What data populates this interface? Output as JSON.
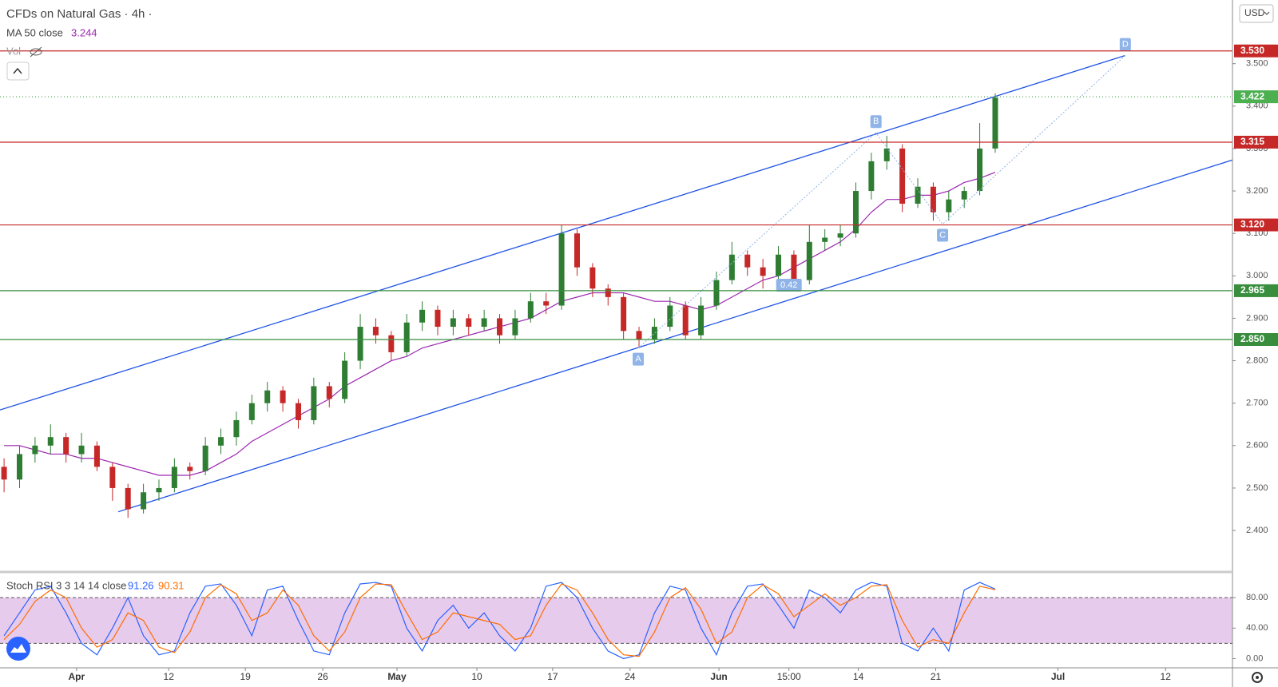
{
  "header": {
    "vol_label": "Vol",
    "currency": "USD"
  },
  "chart_data": [
    {
      "type": "candlestick",
      "title": "CFDs on Natural Gas · 4h ·",
      "colors": {
        "up": "#2e7d32",
        "down": "#c62828"
      },
      "open": [
        2.55,
        2.52,
        2.58,
        2.6,
        2.62,
        2.58,
        2.6,
        2.55,
        2.5,
        2.45,
        2.49,
        2.5,
        2.55,
        2.54,
        2.6,
        2.62,
        2.66,
        2.7,
        2.73,
        2.7,
        2.66,
        2.74,
        2.71,
        2.8,
        2.88,
        2.86,
        2.82,
        2.89,
        2.92,
        2.88,
        2.9,
        2.88,
        2.9,
        2.86,
        2.9,
        2.94,
        2.93,
        3.1,
        3.02,
        2.97,
        2.95,
        2.87,
        2.85,
        2.88,
        2.93,
        2.86,
        2.93,
        2.99,
        3.05,
        3.02,
        3.0,
        3.05,
        2.99,
        3.08,
        3.09,
        3.1,
        3.2,
        3.27,
        3.3,
        3.17,
        3.21,
        3.15,
        3.18,
        3.2,
        3.3
      ],
      "high": [
        2.57,
        2.6,
        2.62,
        2.65,
        2.63,
        2.63,
        2.61,
        2.56,
        2.51,
        2.51,
        2.52,
        2.57,
        2.56,
        2.62,
        2.64,
        2.68,
        2.72,
        2.75,
        2.74,
        2.71,
        2.76,
        2.75,
        2.82,
        2.91,
        2.9,
        2.87,
        2.91,
        2.94,
        2.93,
        2.92,
        2.91,
        2.92,
        2.91,
        2.92,
        2.96,
        2.96,
        3.12,
        3.11,
        3.03,
        2.98,
        2.96,
        2.88,
        2.9,
        2.95,
        2.94,
        2.95,
        3.01,
        3.08,
        3.06,
        3.04,
        3.07,
        3.06,
        3.12,
        3.11,
        3.12,
        3.22,
        3.29,
        3.33,
        3.31,
        3.23,
        3.22,
        3.2,
        3.21,
        3.36,
        3.43
      ],
      "low": [
        2.49,
        2.5,
        2.56,
        2.58,
        2.56,
        2.56,
        2.54,
        2.47,
        2.43,
        2.44,
        2.47,
        2.49,
        2.52,
        2.53,
        2.58,
        2.6,
        2.65,
        2.68,
        2.68,
        2.64,
        2.65,
        2.69,
        2.7,
        2.78,
        2.84,
        2.8,
        2.81,
        2.87,
        2.86,
        2.86,
        2.86,
        2.87,
        2.84,
        2.85,
        2.89,
        2.91,
        2.92,
        3.0,
        2.95,
        2.93,
        2.85,
        2.83,
        2.84,
        2.87,
        2.85,
        2.85,
        2.92,
        2.98,
        3.0,
        2.97,
        2.99,
        2.97,
        2.98,
        3.06,
        3.07,
        3.09,
        3.18,
        3.25,
        3.15,
        3.16,
        3.13,
        3.13,
        3.16,
        3.19,
        3.29
      ],
      "close": [
        2.52,
        2.58,
        2.6,
        2.62,
        2.58,
        2.6,
        2.55,
        2.5,
        2.45,
        2.49,
        2.5,
        2.55,
        2.54,
        2.6,
        2.62,
        2.66,
        2.7,
        2.73,
        2.7,
        2.66,
        2.74,
        2.71,
        2.8,
        2.88,
        2.86,
        2.82,
        2.89,
        2.92,
        2.88,
        2.9,
        2.88,
        2.9,
        2.86,
        2.9,
        2.94,
        2.93,
        3.1,
        3.02,
        2.97,
        2.95,
        2.87,
        2.85,
        2.88,
        2.93,
        2.86,
        2.93,
        2.99,
        3.05,
        3.02,
        3.0,
        3.05,
        2.99,
        3.08,
        3.09,
        3.1,
        3.2,
        3.27,
        3.3,
        3.17,
        3.21,
        3.15,
        3.18,
        3.2,
        3.3,
        3.42
      ],
      "ma": {
        "name": "MA 50 close",
        "color": "#9c27b0",
        "values": [
          2.6,
          2.6,
          2.59,
          2.58,
          2.58,
          2.57,
          2.57,
          2.56,
          2.55,
          2.54,
          2.53,
          2.53,
          2.53,
          2.54,
          2.56,
          2.58,
          2.61,
          2.63,
          2.65,
          2.67,
          2.69,
          2.71,
          2.74,
          2.76,
          2.78,
          2.8,
          2.81,
          2.83,
          2.84,
          2.85,
          2.86,
          2.87,
          2.88,
          2.89,
          2.9,
          2.92,
          2.94,
          2.95,
          2.96,
          2.96,
          2.96,
          2.95,
          2.94,
          2.94,
          2.93,
          2.92,
          2.93,
          2.95,
          2.97,
          2.99,
          3.0,
          3.02,
          3.04,
          3.06,
          3.08,
          3.11,
          3.15,
          3.18,
          3.18,
          3.19,
          3.19,
          3.2,
          3.22,
          3.23,
          3.244
        ]
      },
      "xlim": [
        -0.263,
        79.32
      ],
      "ylim": [
        2.306,
        3.65
      ],
      "yticks": [
        {
          "value": 2.4,
          "label": "2.400"
        },
        {
          "value": 2.5,
          "label": "2.500"
        },
        {
          "value": 2.6,
          "label": "2.600"
        },
        {
          "value": 2.7,
          "label": "2.700"
        },
        {
          "value": 2.8,
          "label": "2.800"
        },
        {
          "value": 2.9,
          "label": "2.900"
        },
        {
          "value": 3.0,
          "label": "3.000"
        },
        {
          "value": 3.1,
          "label": "3.100"
        },
        {
          "value": 3.2,
          "label": "3.200"
        },
        {
          "value": 3.3,
          "label": "3.300"
        },
        {
          "value": 3.4,
          "label": "3.400"
        },
        {
          "value": 3.5,
          "label": "3.500"
        }
      ],
      "levels": [
        {
          "value": 3.53,
          "label": "3.530",
          "color": "#c62828"
        },
        {
          "value": 3.422,
          "label": "3.422",
          "color": "#4caf50",
          "style": "dotted"
        },
        {
          "value": 3.315,
          "label": "3.315",
          "color": "#c62828"
        },
        {
          "value": 3.12,
          "label": "3.120",
          "color": "#c62828"
        },
        {
          "value": 2.965,
          "label": "2.965",
          "color": "#388e3c"
        },
        {
          "value": 2.85,
          "label": "2.850",
          "color": "#388e3c"
        }
      ],
      "channel": {
        "color": "#1e53e5",
        "lines": [
          {
            "x": [
              -0.26,
              72.37
            ],
            "y": [
              2.684,
              3.519
            ]
          },
          {
            "x": [
              7.37,
              79.32
            ],
            "y": [
              2.444,
              3.273
            ]
          }
        ]
      },
      "pattern": {
        "color": "#90b4e8",
        "points": [
          {
            "label": "A",
            "x": 40.95,
            "y": 2.83
          },
          {
            "label": "B",
            "x": 56.3,
            "y": 3.337
          },
          {
            "label": "C",
            "x": 60.6,
            "y": 3.122
          },
          {
            "label": "D",
            "x": 72.4,
            "y": 3.519
          }
        ]
      },
      "ratio_labels": [
        {
          "value": 0.42,
          "x": 50.68,
          "y": 2.978
        }
      ]
    },
    {
      "type": "line",
      "title": "Stoch RSI 3 3 14 14 close",
      "xlim": [
        -0.263,
        79.32
      ],
      "ylim": [
        -10,
        107.4
      ],
      "band": [
        20,
        80
      ],
      "band_color": "#e1bee7",
      "yticks": [
        {
          "value": 0,
          "label": "0.00"
        },
        {
          "value": 40,
          "label": "40.00"
        },
        {
          "value": 80,
          "label": "80.00"
        }
      ],
      "xticks": [
        {
          "value": 4.68,
          "label": "Apr"
        },
        {
          "value": 10.63,
          "label": "12"
        },
        {
          "value": 15.58,
          "label": "19"
        },
        {
          "value": 20.58,
          "label": "26"
        },
        {
          "value": 25.37,
          "label": "May"
        },
        {
          "value": 30.53,
          "label": "10"
        },
        {
          "value": 35.42,
          "label": "17"
        },
        {
          "value": 40.42,
          "label": "24"
        },
        {
          "value": 46.16,
          "label": "Jun"
        },
        {
          "value": 50.68,
          "label": "15:00"
        },
        {
          "value": 55.16,
          "label": "14"
        },
        {
          "value": 60.16,
          "label": "21"
        },
        {
          "value": 68.05,
          "label": "Jul"
        },
        {
          "value": 75.0,
          "label": "12"
        }
      ],
      "series": [
        {
          "color": "#2962ff",
          "values": [
            30,
            60,
            90,
            95,
            60,
            20,
            5,
            40,
            80,
            30,
            5,
            10,
            60,
            95,
            98,
            70,
            30,
            90,
            95,
            50,
            10,
            5,
            60,
            98,
            100,
            95,
            40,
            10,
            50,
            70,
            40,
            60,
            30,
            10,
            40,
            95,
            100,
            80,
            40,
            10,
            0,
            5,
            60,
            95,
            90,
            40,
            5,
            60,
            95,
            98,
            70,
            40,
            90,
            80,
            60,
            90,
            100,
            95,
            20,
            10,
            40,
            10,
            90,
            100,
            91.26
          ]
        },
        {
          "color": "#ff6d00",
          "values": [
            25,
            45,
            75,
            90,
            80,
            40,
            15,
            25,
            60,
            50,
            15,
            8,
            35,
            80,
            97,
            85,
            50,
            60,
            90,
            70,
            30,
            10,
            35,
            80,
            98,
            97,
            60,
            25,
            35,
            60,
            55,
            50,
            45,
            25,
            30,
            70,
            98,
            90,
            60,
            25,
            5,
            3,
            35,
            80,
            93,
            65,
            20,
            35,
            80,
            97,
            85,
            55,
            70,
            85,
            70,
            80,
            95,
            97,
            50,
            15,
            25,
            20,
            60,
            95,
            90.31
          ]
        }
      ]
    }
  ]
}
